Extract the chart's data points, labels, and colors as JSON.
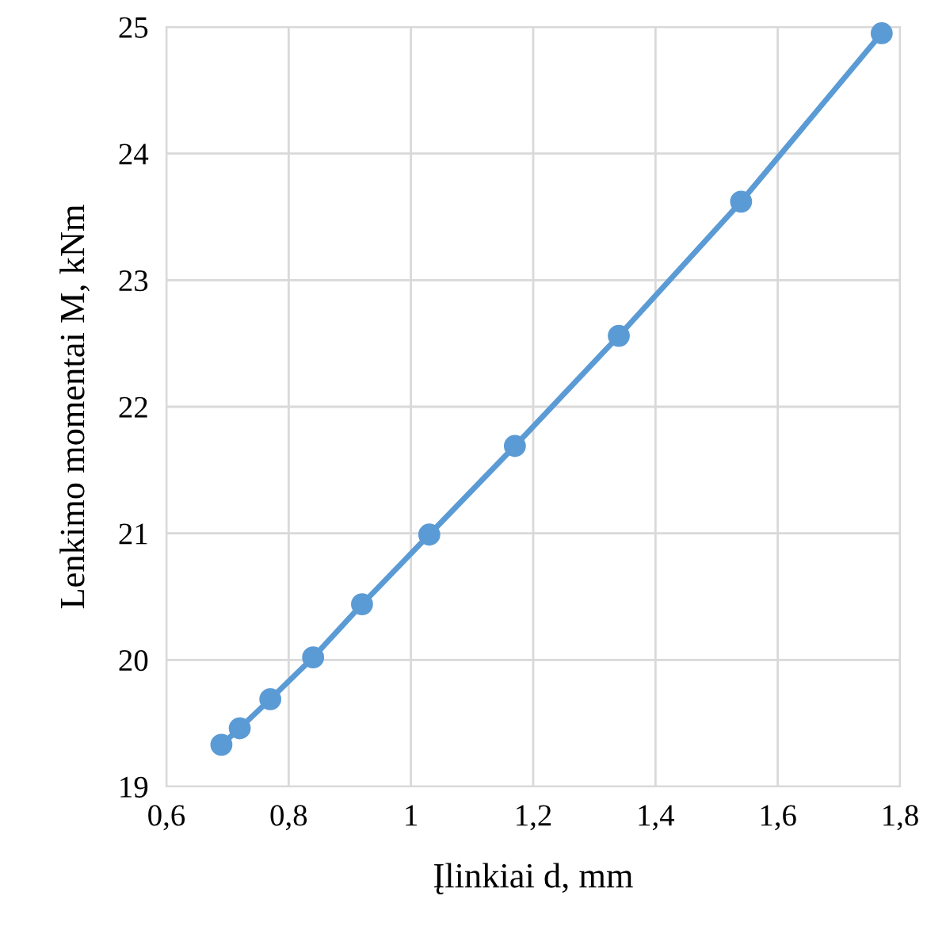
{
  "chart_data": {
    "type": "line",
    "xlabel": "Įlinkiai d, mm",
    "ylabel": "Lenkimo momentai M, kNm",
    "x": [
      0.69,
      0.72,
      0.77,
      0.84,
      0.92,
      1.03,
      1.17,
      1.34,
      1.54,
      1.77
    ],
    "series": [
      {
        "color": "#5b9bd5",
        "values": [
          19.33,
          19.46,
          19.69,
          20.02,
          20.44,
          20.99,
          21.69,
          22.56,
          23.62,
          24.95
        ]
      }
    ],
    "xlim": [
      0.6,
      1.8
    ],
    "xticks": [
      {
        "value": 0.6,
        "label": "0,6"
      },
      {
        "value": 0.8,
        "label": "0,8"
      },
      1,
      {
        "value": 1.2,
        "label": "1,2"
      },
      {
        "value": 1.4,
        "label": "1,4"
      },
      {
        "value": 1.6,
        "label": "1,6"
      },
      {
        "value": 1.8,
        "label": "1,8"
      }
    ],
    "ylim": [
      19,
      25
    ],
    "yticks": [
      19,
      20,
      21,
      22,
      23,
      24,
      25
    ],
    "grid": true,
    "marker": "circle",
    "line_style": "solid"
  }
}
